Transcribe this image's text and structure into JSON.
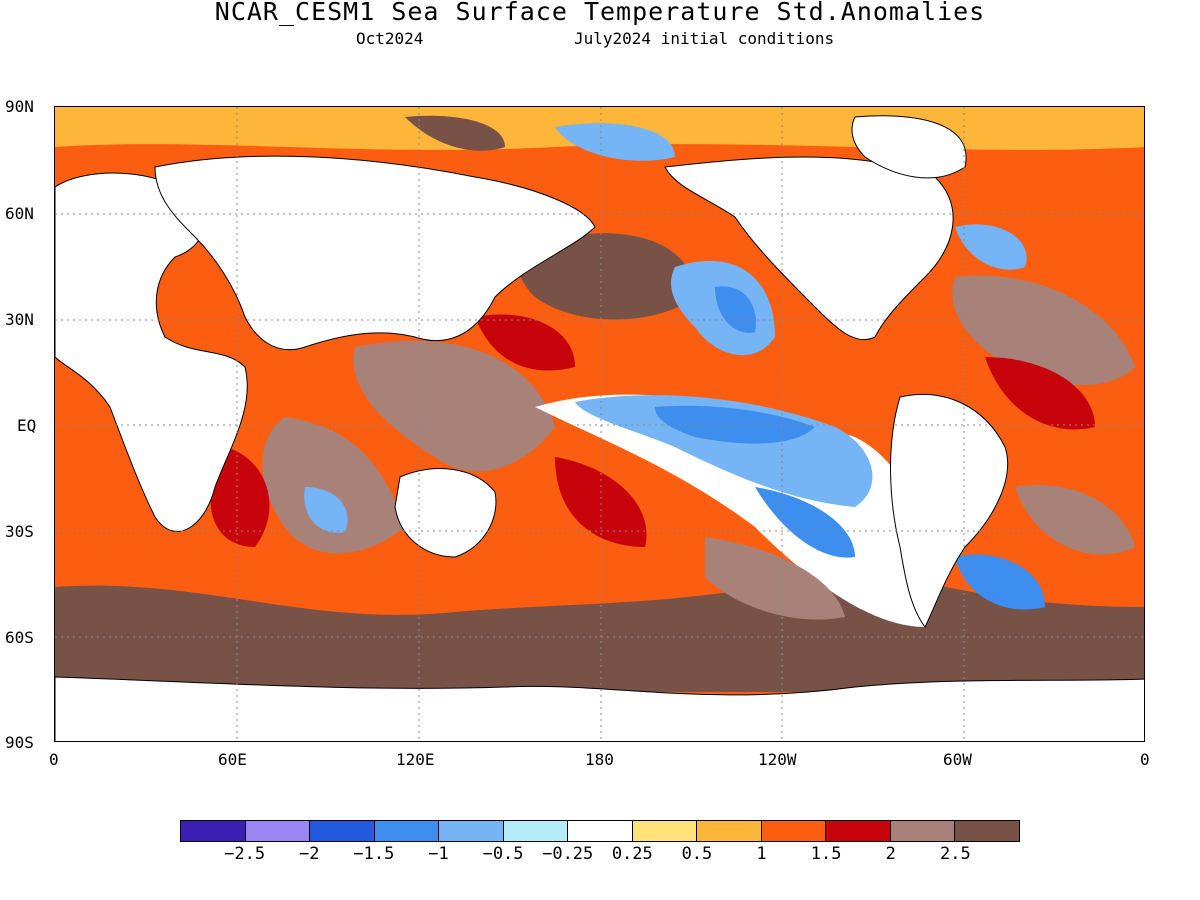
{
  "title": "NCAR_CESM1 Sea Surface Temperature Std.Anomalies",
  "subtitle_left": "Oct2024",
  "subtitle_right": "July2024 initial conditions",
  "y_axis_labels": [
    "90N",
    "60N",
    "30N",
    "EQ",
    "30S",
    "60S",
    "90S"
  ],
  "x_axis_labels": [
    "0",
    "60E",
    "120E",
    "180",
    "120W",
    "60W",
    "0"
  ],
  "legend": {
    "colors": [
      "#3b1fb5",
      "#9b85f2",
      "#2259df",
      "#3d8eee",
      "#75b4f5",
      "#b4edf7",
      "#ffffff",
      "#ffe27a",
      "#fdb53a",
      "#fb5e10",
      "#c7040b",
      "#a88279",
      "#785147"
    ],
    "labels": [
      "-2.5",
      "-2",
      "-1.5",
      "-1",
      "-0.5",
      "-0.25",
      "0.25",
      "0.5",
      "1",
      "1.5",
      "2",
      "2.5"
    ]
  },
  "map_colors": {
    "land": "#ffffff",
    "coast": "#000000",
    "grid": "#888888"
  }
}
